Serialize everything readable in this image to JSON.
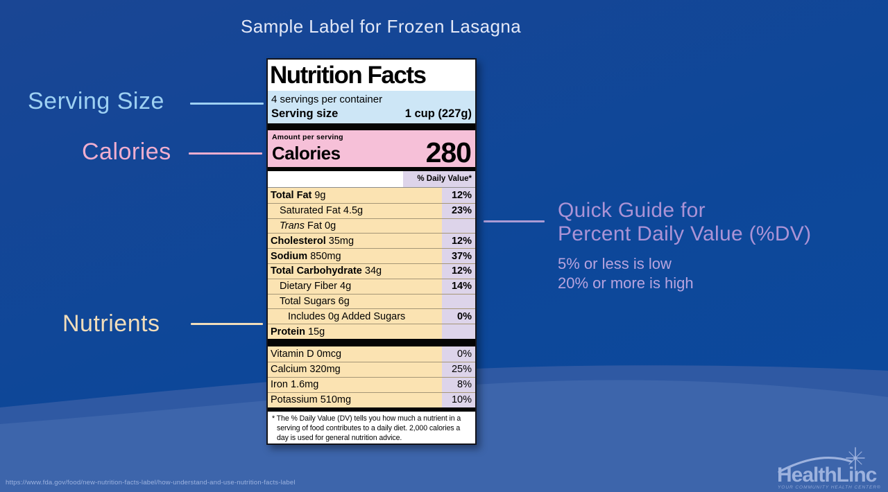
{
  "slide": {
    "title": "Sample Label for Frozen Lasagna",
    "source_url": "https://www.fda.gov/food/new-nutrition-facts-label/how-understand-and-use-nutrition-facts-label",
    "background_color": "#0d4799"
  },
  "annotations": {
    "serving_size": {
      "label": "Serving Size",
      "color": "#9ed1f3"
    },
    "calories": {
      "label": "Calories",
      "color": "#efaecf"
    },
    "nutrients": {
      "label": "Nutrients",
      "color": "#f1ddba"
    },
    "quick_guide": {
      "line1": "Quick Guide for",
      "line2": "Percent Daily Value (%DV)",
      "sub1": "5% or less is low",
      "sub2": "20% or more is high",
      "color": "#ab93d6"
    }
  },
  "nutrition_label": {
    "title": "Nutrition Facts",
    "servings_per_container": "4 servings per container",
    "serving_size_label": "Serving size",
    "serving_size_value": "1 cup (227g)",
    "amount_per_serving": "Amount per serving",
    "calories_label": "Calories",
    "calories_value": "280",
    "daily_value_header": "% Daily Value*",
    "nutrients": [
      {
        "term": "Total Fat",
        "amount": "9g",
        "dv": "12%",
        "bold": true,
        "dv_bold": true,
        "indent": 0
      },
      {
        "term": "Saturated Fat",
        "amount": "4.5g",
        "dv": "23%",
        "bold": false,
        "dv_bold": true,
        "indent": 1
      },
      {
        "prefix": "Trans",
        "term": "Fat",
        "amount": "0g",
        "dv": "",
        "bold": false,
        "dv_bold": false,
        "indent": 1
      },
      {
        "term": "Cholesterol",
        "amount": "35mg",
        "dv": "12%",
        "bold": true,
        "dv_bold": true,
        "indent": 0
      },
      {
        "term": "Sodium",
        "amount": "850mg",
        "dv": "37%",
        "bold": true,
        "dv_bold": true,
        "indent": 0
      },
      {
        "term": "Total Carbohydrate",
        "amount": "34g",
        "dv": "12%",
        "bold": true,
        "dv_bold": true,
        "indent": 0
      },
      {
        "term": "Dietary Fiber",
        "amount": "4g",
        "dv": "14%",
        "bold": false,
        "dv_bold": true,
        "indent": 1
      },
      {
        "term": "Total Sugars",
        "amount": "6g",
        "dv": "",
        "bold": false,
        "dv_bold": false,
        "indent": 1
      },
      {
        "term": "Includes 0g Added Sugars",
        "amount": "",
        "dv": "0%",
        "bold": false,
        "dv_bold": true,
        "indent": 2
      },
      {
        "term": "Protein",
        "amount": "15g",
        "dv": "",
        "bold": true,
        "dv_bold": false,
        "indent": 0
      }
    ],
    "vitamins": [
      {
        "term": "Vitamin D",
        "amount": "0mcg",
        "dv": "0%",
        "bold": false,
        "dv_bold": false,
        "indent": 0
      },
      {
        "term": "Calcium",
        "amount": "320mg",
        "dv": "25%",
        "bold": false,
        "dv_bold": false,
        "indent": 0
      },
      {
        "term": "Iron",
        "amount": "1.6mg",
        "dv": "8%",
        "bold": false,
        "dv_bold": false,
        "indent": 0
      },
      {
        "term": "Potassium",
        "amount": "510mg",
        "dv": "10%",
        "bold": false,
        "dv_bold": false,
        "indent": 0
      }
    ],
    "footnote": "* The % Daily Value (DV) tells you how much a nutrient in a serving of food contributes to a daily diet. 2,000 calories a day is used for general nutrition advice.",
    "colors": {
      "serving_bg": "#cde6f6",
      "calories_bg": "#f6c0d8",
      "nutrient_bg": "#fbe3b2",
      "dv_column_bg": "#ddd4ea"
    }
  },
  "logo": {
    "name": "HealthLinc",
    "tagline": "YOUR COMMUNITY HEALTH CENTER®",
    "color": "#9db2de"
  }
}
